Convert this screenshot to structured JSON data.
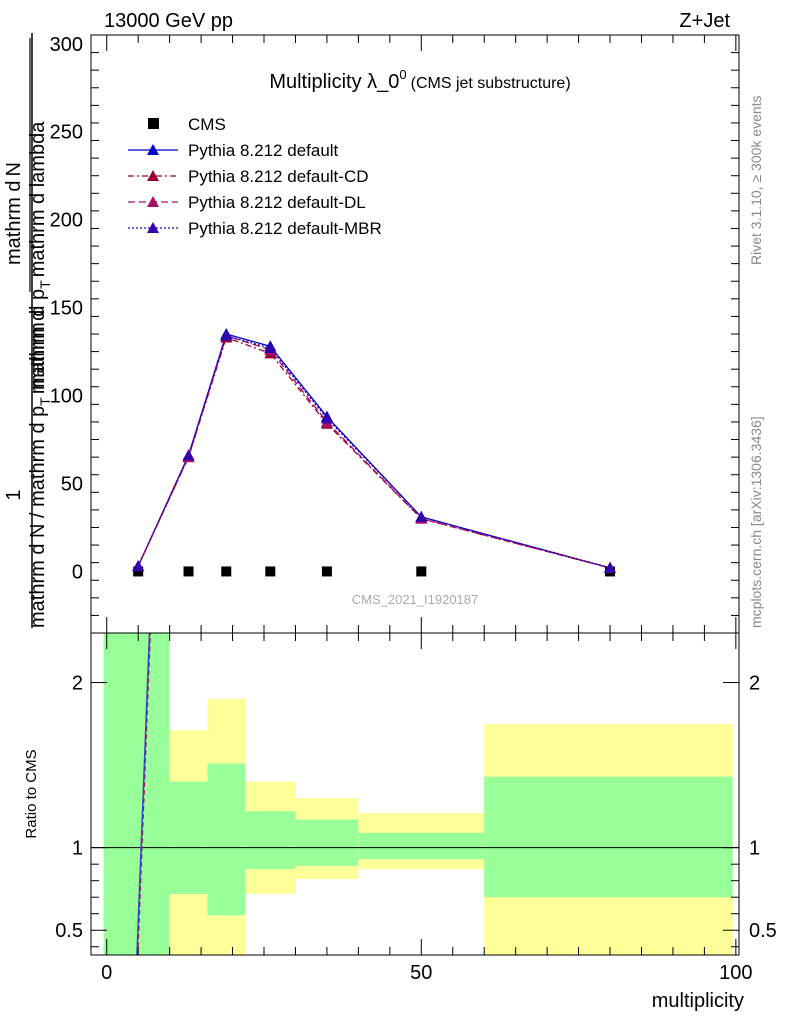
{
  "header": {
    "left": "13000 GeV pp",
    "right": "Z+Jet"
  },
  "side_labels": {
    "rivet": "Rivet 3.1.10, ≥ 300k events",
    "mcplots": "mcplots.cern.ch [arXiv:1306.3436]"
  },
  "chart_data": [
    {
      "type": "line",
      "title": "Multiplicity λ_0",
      "title_sup": "0",
      "subtitle": "(CMS jet substructure)",
      "watermark": "CMS_2021_I1920187",
      "ylabel": "1 / mathrm d N / mathrm d p_T mathrm d N / mathrm d p_T mathrm d lambda",
      "ylabel_line1": "1",
      "ylabel_line2": "mathrm d N / mathrm d p",
      "ylabel_sub": "T",
      "ylabel_line3": "mathrm d",
      "ylabel_frac_num": "mathrm d",
      "ylabel_frac_num2": "N",
      "ylabel_frac_den": "mathrm d p",
      "ylabel_frac_den_sub": "T",
      "ylabel_frac_den2": "mathrm d lambda",
      "xlim": [
        -2.5,
        100.5
      ],
      "ylim": [
        -35,
        305
      ],
      "yticks": [
        0,
        50,
        100,
        150,
        200,
        250,
        300
      ],
      "x": [
        5,
        13,
        19,
        26,
        35,
        50,
        80
      ],
      "series": [
        {
          "name": "CMS",
          "marker": "square",
          "color": "#000000",
          "values": [
            0,
            0,
            0,
            0,
            0,
            0,
            0
          ]
        },
        {
          "name": "Pythia 8.212 default",
          "marker": "triangle",
          "color": "#0000cc",
          "dash": "",
          "values": [
            3,
            66,
            135,
            128,
            88,
            31,
            2
          ]
        },
        {
          "name": "Pythia 8.212 default-CD",
          "marker": "triangle",
          "color": "#990033",
          "dash": "6,3,2,3",
          "values": [
            3,
            65,
            133,
            124,
            84,
            30,
            2
          ]
        },
        {
          "name": "Pythia 8.212 default-DL",
          "marker": "triangle",
          "color": "#aa1166",
          "dash": "7,4",
          "values": [
            3,
            65,
            134,
            126,
            85,
            30,
            2
          ]
        },
        {
          "name": "Pythia 8.212 default-MBR",
          "marker": "triangle",
          "color": "#3300aa",
          "dash": "2,2",
          "values": [
            3,
            66,
            134,
            127,
            87,
            31,
            2
          ]
        }
      ]
    },
    {
      "type": "area",
      "ylabel": "Ratio to CMS",
      "xlabel": "multiplicity",
      "xlim": [
        -2.5,
        100.5
      ],
      "ylim": [
        0.35,
        2.3
      ],
      "yticks": [
        0.5,
        1,
        2
      ],
      "xticks": [
        0,
        50,
        100
      ],
      "reference": 1,
      "bands": [
        {
          "x0": -0.5,
          "x1": 10,
          "green": [
            0.3,
            2.4
          ],
          "yellow": [
            0.3,
            2.4
          ]
        },
        {
          "x0": 10,
          "x1": 16,
          "green": [
            0.72,
            1.4
          ],
          "yellow": [
            0.3,
            1.71
          ]
        },
        {
          "x0": 16,
          "x1": 22,
          "green": [
            0.59,
            1.51
          ],
          "yellow": [
            0.3,
            1.9
          ]
        },
        {
          "x0": 22,
          "x1": 30,
          "green": [
            0.87,
            1.22
          ],
          "yellow": [
            0.72,
            1.4
          ]
        },
        {
          "x0": 30,
          "x1": 40,
          "green": [
            0.89,
            1.17
          ],
          "yellow": [
            0.81,
            1.3
          ]
        },
        {
          "x0": 40,
          "x1": 60,
          "green": [
            0.93,
            1.09
          ],
          "yellow": [
            0.87,
            1.21
          ]
        },
        {
          "x0": 60,
          "x1": 99.5,
          "green": [
            0.7,
            1.43
          ],
          "yellow": [
            0.3,
            1.75
          ]
        }
      ],
      "ratio_line": {
        "x": [
          4.8,
          6.8
        ],
        "y": [
          0.3,
          2.4
        ]
      }
    }
  ]
}
